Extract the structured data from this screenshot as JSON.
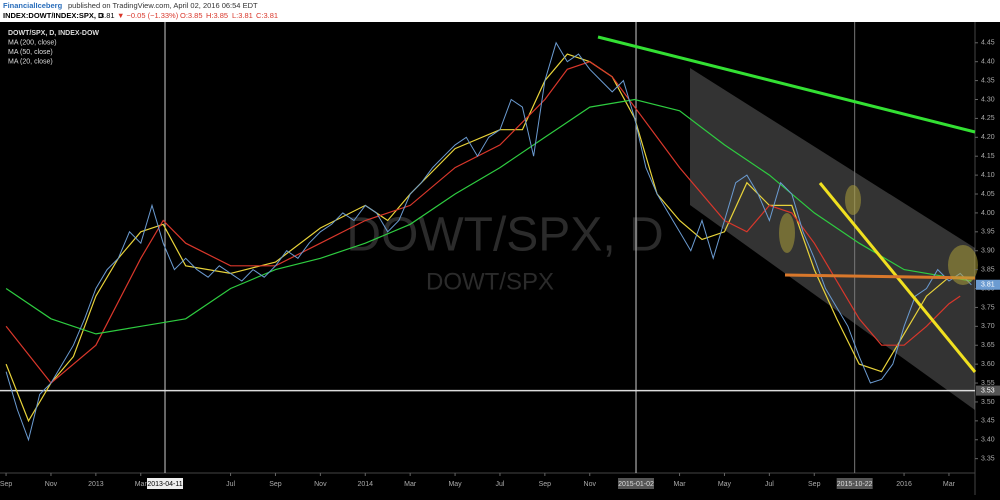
{
  "header": {
    "publisher": "FinancialIceberg",
    "published": "published on TradingView.com, April 02, 2016 06:54 EDT",
    "symbol": "INDEX:DOWT/INDEX:SPX, D",
    "last": "3.81",
    "change": "▼ −0.05 (−1.33%)",
    "open": "O:3.85",
    "high": "H:3.85",
    "low": "L:3.81",
    "close": "C:3.81"
  },
  "chart_data": {
    "type": "line",
    "watermark": "DOWT/SPX, D",
    "watermark_sub": "DOWT/SPX",
    "xlim": [
      -0.27,
      43.16
    ],
    "ylim": [
      3.32,
      4.505
    ],
    "xticks": [
      {
        "value": 0,
        "label": "Sep"
      },
      {
        "value": 2,
        "label": "Nov"
      },
      {
        "value": 4,
        "label": "2013"
      },
      {
        "value": 6,
        "label": "Mar"
      },
      {
        "value": 10,
        "label": "Jul"
      },
      {
        "value": 12,
        "label": "Sep"
      },
      {
        "value": 14,
        "label": "Nov"
      },
      {
        "value": 16,
        "label": "2014"
      },
      {
        "value": 18,
        "label": "Mar"
      },
      {
        "value": 20,
        "label": "May"
      },
      {
        "value": 22,
        "label": "Jul"
      },
      {
        "value": 24,
        "label": "Sep"
      },
      {
        "value": 26,
        "label": "Nov"
      },
      {
        "value": 30,
        "label": "Mar"
      },
      {
        "value": 32,
        "label": "May"
      },
      {
        "value": 34,
        "label": "Jul"
      },
      {
        "value": 36,
        "label": "Sep"
      },
      {
        "value": 40,
        "label": "2016"
      },
      {
        "value": 42,
        "label": "Mar"
      }
    ],
    "yticks": [
      4.45,
      {
        "value": 4.4,
        "label": "4.40"
      },
      4.35,
      {
        "value": 4.3,
        "label": "4.30"
      },
      4.25,
      {
        "value": 4.2,
        "label": "4.20"
      },
      4.15,
      {
        "value": 4.1,
        "label": "4.10"
      },
      4.05,
      {
        "value": 4.0,
        "label": "4.00"
      },
      3.95,
      {
        "value": 3.9,
        "label": "3.90"
      },
      3.85,
      {
        "value": 3.8,
        "label": "3.80"
      },
      3.75,
      {
        "value": 3.7,
        "label": "3.70"
      },
      3.65,
      {
        "value": 3.6,
        "label": "3.60"
      },
      3.55,
      {
        "value": 3.5,
        "label": "3.50"
      },
      3.45,
      {
        "value": 3.4,
        "label": "3.40"
      },
      3.35
    ],
    "vlines": [
      {
        "x": 7.08,
        "label": "2013-04-11"
      },
      {
        "x": 28.06,
        "label": "2015-01-02"
      },
      {
        "x": 37.8,
        "label": "2015-10-22"
      }
    ],
    "hline": 3.53,
    "last": 3.81,
    "series": [
      {
        "name": "DOWT/SPX, D, INDEX-DOW",
        "color": "#6b9bd1",
        "x": [
          0,
          0.5,
          1,
          1.5,
          2,
          2.5,
          3,
          3.5,
          4,
          4.5,
          5,
          5.5,
          6,
          6.5,
          7,
          7.5,
          8,
          8.5,
          9,
          9.5,
          10,
          10.5,
          11,
          11.5,
          12,
          12.5,
          13,
          13.5,
          14,
          14.5,
          15,
          15.5,
          16,
          16.5,
          17,
          17.5,
          18,
          18.5,
          19,
          19.5,
          20,
          20.5,
          21,
          21.5,
          22,
          22.5,
          23,
          23.5,
          24,
          24.5,
          25,
          25.5,
          26,
          26.5,
          27,
          27.5,
          28,
          28.5,
          29,
          29.5,
          30,
          30.5,
          31,
          31.5,
          32,
          32.5,
          33,
          33.5,
          34,
          34.5,
          35,
          35.5,
          36,
          36.5,
          37,
          37.5,
          38,
          38.5,
          39,
          39.5,
          40,
          40.5,
          41,
          41.5,
          42,
          42.5,
          43
        ],
        "values": [
          3.58,
          3.48,
          3.4,
          3.52,
          3.55,
          3.6,
          3.65,
          3.72,
          3.8,
          3.85,
          3.88,
          3.95,
          3.92,
          4.02,
          3.92,
          3.85,
          3.88,
          3.85,
          3.83,
          3.86,
          3.84,
          3.82,
          3.85,
          3.83,
          3.86,
          3.9,
          3.88,
          3.92,
          3.95,
          3.97,
          4.0,
          3.98,
          4.02,
          4.0,
          3.95,
          3.98,
          4.05,
          4.08,
          4.12,
          4.15,
          4.18,
          4.2,
          4.15,
          4.2,
          4.22,
          4.3,
          4.28,
          4.15,
          4.35,
          4.45,
          4.4,
          4.42,
          4.38,
          4.35,
          4.32,
          4.35,
          4.25,
          4.12,
          4.05,
          4.0,
          3.95,
          3.9,
          3.98,
          3.88,
          3.98,
          4.08,
          4.1,
          4.05,
          3.98,
          4.08,
          4.05,
          3.95,
          3.88,
          3.8,
          3.75,
          3.7,
          3.62,
          3.55,
          3.56,
          3.6,
          3.7,
          3.78,
          3.8,
          3.85,
          3.82,
          3.84,
          3.81
        ]
      },
      {
        "name": "MA (200, close)",
        "color": "#2ecc40",
        "x": [
          0,
          2,
          4,
          6,
          8,
          10,
          12,
          14,
          16,
          18,
          20,
          22,
          24,
          26,
          28,
          30,
          32,
          34,
          36,
          38,
          40,
          42,
          43
        ],
        "values": [
          3.8,
          3.72,
          3.68,
          3.7,
          3.72,
          3.8,
          3.85,
          3.88,
          3.92,
          3.97,
          4.05,
          4.12,
          4.2,
          4.28,
          4.3,
          4.27,
          4.18,
          4.1,
          4.0,
          3.92,
          3.85,
          3.83,
          3.82
        ]
      },
      {
        "name": "MA (50, close)",
        "color": "#d9372b",
        "x": [
          0,
          2,
          4,
          6,
          7,
          8,
          10,
          12,
          14,
          16,
          18,
          20,
          22,
          24,
          25,
          26,
          27,
          28,
          30,
          32,
          33,
          34,
          35,
          36,
          38,
          39,
          40,
          41,
          42,
          42.5
        ],
        "values": [
          3.7,
          3.55,
          3.65,
          3.88,
          3.98,
          3.92,
          3.86,
          3.86,
          3.92,
          3.98,
          4.02,
          4.12,
          4.18,
          4.3,
          4.38,
          4.4,
          4.36,
          4.28,
          4.12,
          3.98,
          3.95,
          4.02,
          4.0,
          3.92,
          3.72,
          3.65,
          3.65,
          3.7,
          3.76,
          3.78
        ]
      },
      {
        "name": "MA (20, close)",
        "color": "#e8d33a",
        "x": [
          0,
          1,
          2,
          3,
          4,
          5,
          6,
          7,
          8,
          10,
          12,
          14,
          16,
          17,
          18,
          20,
          22,
          23,
          24,
          25,
          26,
          27,
          28,
          29,
          30,
          31,
          32,
          33,
          34,
          35,
          36,
          37,
          38,
          39,
          40,
          41,
          42,
          42.5
        ],
        "values": [
          3.6,
          3.45,
          3.55,
          3.62,
          3.78,
          3.88,
          3.95,
          3.97,
          3.86,
          3.84,
          3.87,
          3.96,
          4.02,
          3.98,
          4.05,
          4.17,
          4.22,
          4.22,
          4.35,
          4.42,
          4.4,
          4.36,
          4.25,
          4.05,
          3.98,
          3.93,
          3.95,
          4.08,
          4.02,
          4.02,
          3.85,
          3.72,
          3.6,
          3.58,
          3.68,
          3.78,
          3.83,
          3.83
        ]
      }
    ]
  }
}
